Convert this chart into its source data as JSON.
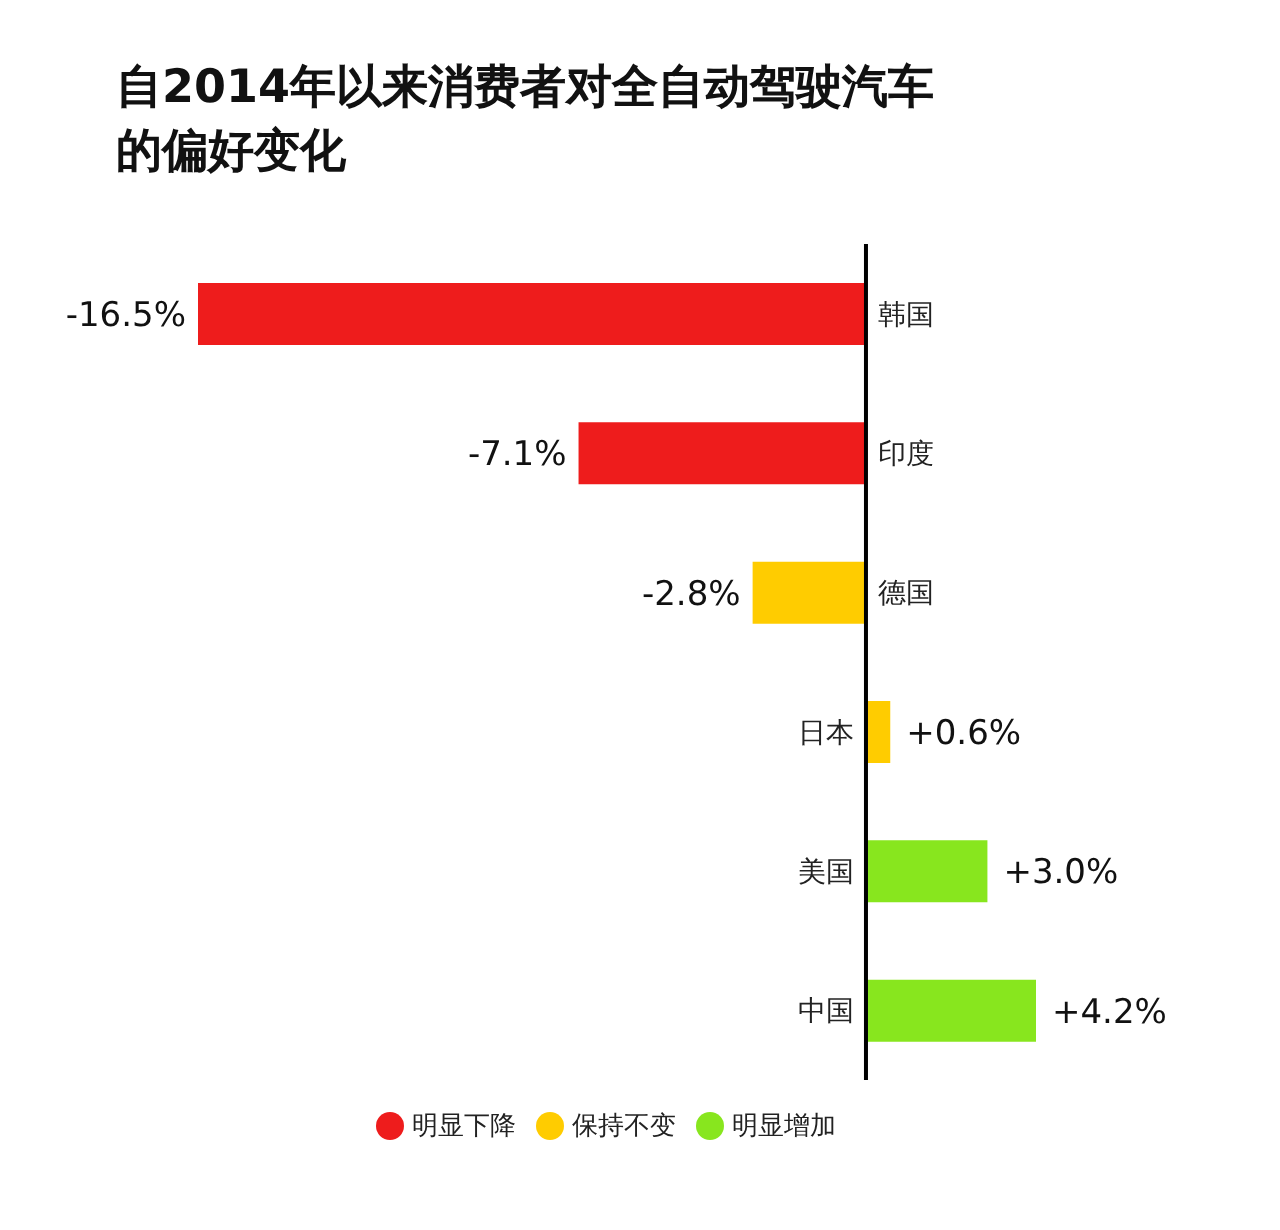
{
  "chart_data": {
    "type": "bar",
    "orientation": "horizontal",
    "stacked": true,
    "title": "自2014年以来消费者对全自动驾驶汽车的偏好变化",
    "categories": [
      "韩国",
      "印度",
      "德国",
      "日本",
      "美国",
      "中国"
    ],
    "series": [
      {
        "name": "明显下降",
        "color": "#ee1c1c",
        "values": [
          -16.5,
          -7.1,
          null,
          null,
          null,
          null
        ],
        "value_labels": [
          "-16.5%",
          "-7.1%",
          null,
          null,
          null,
          null
        ]
      },
      {
        "name": "保持不变",
        "color": "#ffcc00",
        "values": [
          null,
          null,
          -2.8,
          0.6,
          null,
          null
        ],
        "value_labels": [
          null,
          null,
          "-2.8%",
          "+0.6%",
          null,
          null
        ]
      },
      {
        "name": "明显增加",
        "color": "#88e61e",
        "values": [
          null,
          null,
          null,
          null,
          3.0,
          4.2
        ],
        "value_labels": [
          null,
          null,
          null,
          null,
          "+3.0%",
          "+4.2%"
        ]
      }
    ],
    "legend": "bottom",
    "grid": false
  }
}
